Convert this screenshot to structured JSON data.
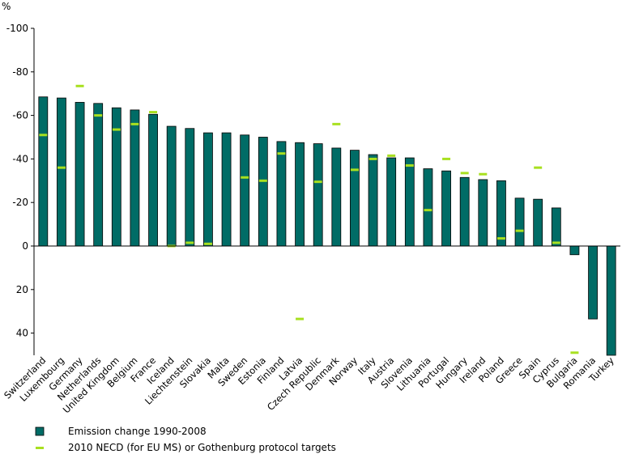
{
  "chart_data": {
    "type": "bar",
    "unit_label": "%",
    "y_axis_inverted": true,
    "ylim": [
      -100,
      50
    ],
    "yticks": [
      -100,
      -80,
      -60,
      -40,
      -20,
      0,
      20,
      40
    ],
    "ytick_labels": [
      "-100",
      "-80",
      "-60",
      "-40",
      "-20",
      "0",
      "20",
      "40"
    ],
    "categories": [
      "Switzerland",
      "Luxembourg",
      "Germany",
      "Netherlands",
      "United Kingdom",
      "Belgium",
      "France",
      "Iceland",
      "Liechtenstein",
      "Slovakia",
      "Malta",
      "Sweden",
      "Estonia",
      "Finland",
      "Latvia",
      "Czech Republic",
      "Denmark",
      "Norway",
      "Italy",
      "Austria",
      "Slovenia",
      "Lithuania",
      "Portugal",
      "Hungary",
      "Ireland",
      "Poland",
      "Greece",
      "Spain",
      "Cyprus",
      "Bulgaria",
      "Romania",
      "Turkey"
    ],
    "series": [
      {
        "name": "Emission change 1990-2008",
        "kind": "bar",
        "color": "#006c66",
        "values": [
          -68.5,
          -68,
          -66,
          -65.5,
          -63.5,
          -62.5,
          -60.5,
          -55,
          -54,
          -52,
          -52,
          -51,
          -50,
          -48,
          -47.5,
          -47,
          -45,
          -44,
          -42,
          -40.5,
          -40.5,
          -35.5,
          -34.5,
          -31.5,
          -30.5,
          -30,
          -22,
          -21.5,
          -17.5,
          4,
          33.5,
          52
        ]
      },
      {
        "name": "2010 NECD (for EU MS) or Gothenburg protocol targets",
        "kind": "marker",
        "color": "#a8e020",
        "values": [
          -51,
          -36,
          -73.5,
          -60,
          -53.5,
          -56,
          -61.5,
          0,
          -1.5,
          -1,
          null,
          -31.5,
          -30,
          -42.5,
          33.5,
          -29.5,
          -56,
          -35,
          -40,
          -41.5,
          -37,
          -16.5,
          -40,
          -33.5,
          -33,
          -3.5,
          -7,
          -36,
          -1.5,
          49,
          null,
          null
        ]
      }
    ],
    "legend": [
      {
        "label": "Emission change 1990-2008",
        "symbol": "square"
      },
      {
        "label": "2010 NECD (for EU MS) or Gothenburg protocol targets",
        "symbol": "dash"
      }
    ],
    "legend_placement": "bottom-left"
  }
}
